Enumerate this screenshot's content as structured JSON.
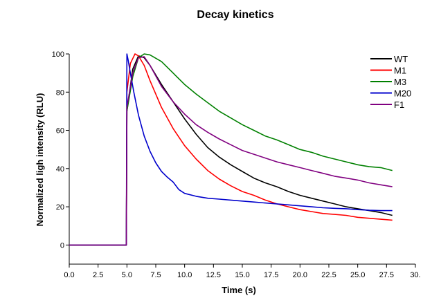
{
  "chart_data": {
    "type": "line",
    "title": "Decay kinetics",
    "xlabel": "Time (s)",
    "ylabel": "Normalized ligh intensity (RLU)",
    "xlim": [
      0,
      30
    ],
    "ylim": [
      -10,
      100
    ],
    "x_ticks": [
      0,
      2.5,
      5,
      7.5,
      10,
      12.5,
      15,
      17.5,
      20,
      22.5,
      25,
      27.5,
      30
    ],
    "x_tick_labels": [
      "0.0",
      "2.5",
      "5.0",
      "7.5",
      "10.0",
      "12.5",
      "15.0",
      "17.5",
      "20.0",
      "22.5",
      "25.0",
      "27.5",
      "30."
    ],
    "y_ticks": [
      0,
      20,
      40,
      60,
      80,
      100
    ],
    "y_tick_labels": [
      "0",
      "20",
      "40",
      "60",
      "80",
      "100"
    ],
    "legend_position": "top-right",
    "grid": false,
    "series": [
      {
        "name": "WT",
        "color": "#000000",
        "x": [
          0,
          4.95,
          5,
          5.5,
          6,
          6.5,
          7,
          8,
          9,
          10,
          11,
          12,
          13,
          14,
          15,
          16,
          17,
          18,
          19,
          20,
          21,
          22,
          23,
          24,
          25,
          26,
          27,
          28
        ],
        "y": [
          0,
          0,
          70,
          92,
          99,
          98,
          94,
          84,
          75,
          66,
          58,
          51,
          46,
          42,
          38.5,
          35,
          32.5,
          30.5,
          28,
          26,
          24.5,
          23,
          21.5,
          20,
          19,
          18,
          17,
          15.5
        ]
      },
      {
        "name": "M1",
        "color": "#ff0000",
        "x": [
          0,
          4.95,
          5,
          5.3,
          5.7,
          6,
          6.5,
          7,
          8,
          9,
          10,
          11,
          12,
          13,
          14,
          15,
          16,
          17,
          18,
          19,
          20,
          21,
          22,
          23,
          24,
          25,
          26,
          27,
          28
        ],
        "y": [
          0,
          0,
          80,
          95,
          100,
          99,
          94,
          86,
          72,
          61,
          52,
          45,
          39,
          34.5,
          31,
          28,
          26,
          23.5,
          21.5,
          20,
          18.5,
          17.5,
          16.5,
          16,
          15.5,
          14.5,
          14,
          13.5,
          13
        ]
      },
      {
        "name": "M3",
        "color": "#008000",
        "x": [
          0,
          4.95,
          5,
          5.5,
          6,
          6.5,
          7,
          8,
          9,
          10,
          11,
          12,
          13,
          14,
          15,
          16,
          17,
          18,
          19,
          20,
          21,
          22,
          23,
          24,
          25,
          26,
          27,
          28
        ],
        "y": [
          0,
          0,
          70,
          88,
          98,
          100,
          99.5,
          96,
          90,
          84,
          79,
          74.5,
          70,
          66.5,
          63,
          60,
          57,
          55,
          52.5,
          50,
          48.5,
          46.5,
          45,
          43.5,
          42,
          41,
          40.5,
          39
        ]
      },
      {
        "name": "M20",
        "color": "#0000cc",
        "x": [
          0,
          4.95,
          5,
          5.1,
          5.3,
          5.6,
          6,
          6.5,
          7,
          7.5,
          8,
          8.5,
          9,
          9.5,
          10,
          11,
          12,
          13,
          14,
          15,
          16,
          17,
          18,
          19,
          20,
          21,
          22,
          23,
          24,
          25,
          26,
          27,
          28
        ],
        "y": [
          0,
          0,
          100,
          97,
          90,
          80,
          68,
          57,
          49,
          43,
          38.5,
          35.5,
          33,
          29,
          27,
          25.5,
          24.5,
          24,
          23.5,
          23,
          22.5,
          22,
          21.5,
          21,
          20.5,
          20,
          19.5,
          19.2,
          19,
          18.5,
          18.2,
          18,
          18
        ]
      },
      {
        "name": "F1",
        "color": "#800080",
        "x": [
          0,
          4.95,
          5,
          5.5,
          6,
          6.5,
          7,
          8,
          9,
          10,
          11,
          12,
          13,
          14,
          15,
          16,
          17,
          18,
          19,
          20,
          21,
          22,
          23,
          24,
          25,
          26,
          27,
          28
        ],
        "y": [
          0,
          0,
          72,
          90,
          98,
          98.5,
          94,
          83,
          75,
          68.5,
          63,
          59,
          55.5,
          52.5,
          49.5,
          47.5,
          45.5,
          43.5,
          42,
          40.5,
          39,
          37.5,
          36,
          35,
          34,
          32.5,
          31.5,
          30.5
        ]
      }
    ]
  }
}
